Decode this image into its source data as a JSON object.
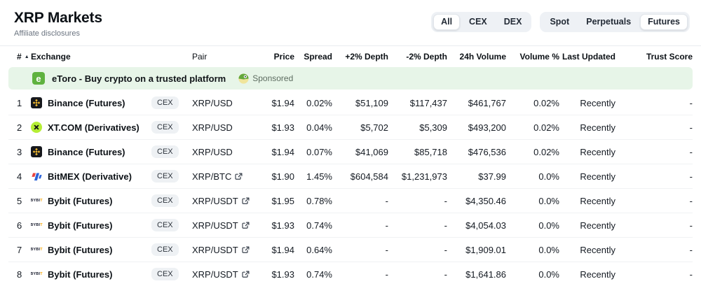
{
  "page": {
    "title": "XRP Markets",
    "subtitle": "Affiliate disclosures"
  },
  "icons": {
    "sort_ascending": "▲"
  },
  "filters": {
    "group1": {
      "options": [
        "All",
        "CEX",
        "DEX"
      ],
      "selected": "All"
    },
    "group2": {
      "options": [
        "Spot",
        "Perpetuals",
        "Futures"
      ],
      "selected": "Futures"
    }
  },
  "sponsored": {
    "logo": "etoro-logo",
    "logo_letter": "e",
    "text": "eToro - Buy crypto on a trusted platform",
    "badge_icon": "coingecko-gecko-icon",
    "badge_label": "Sponsored",
    "background_color": "#e7f5e8",
    "logo_color": "#5fb23f"
  },
  "table": {
    "headers": {
      "num": "#",
      "exchange": "Exchange",
      "pair": "Pair",
      "price": "Price",
      "spread": "Spread",
      "depth_plus": "+2% Depth",
      "depth_minus": "-2% Depth",
      "volume": "24h Volume",
      "volume_pct": "Volume %",
      "last_updated": "Last Updated",
      "trust_score": "Trust Score"
    },
    "rows": [
      {
        "num": "1",
        "logo": "binance-logo",
        "exchange": "Binance (Futures)",
        "type": "CEX",
        "pair": "XRP/USD",
        "pair_external_link": false,
        "price": "$1.94",
        "spread": "0.02%",
        "depth_plus": "$51,109",
        "depth_minus": "$117,437",
        "volume": "$461,767",
        "volume_pct": "0.02%",
        "last_updated": "Recently",
        "trust_score": "-"
      },
      {
        "num": "2",
        "logo": "xt-logo",
        "exchange": "XT.COM (Derivatives)",
        "type": "CEX",
        "pair": "XRP/USD",
        "pair_external_link": false,
        "price": "$1.93",
        "spread": "0.04%",
        "depth_plus": "$5,702",
        "depth_minus": "$5,309",
        "volume": "$493,200",
        "volume_pct": "0.02%",
        "last_updated": "Recently",
        "trust_score": "-"
      },
      {
        "num": "3",
        "logo": "binance-logo",
        "exchange": "Binance (Futures)",
        "type": "CEX",
        "pair": "XRP/USD",
        "pair_external_link": false,
        "price": "$1.94",
        "spread": "0.07%",
        "depth_plus": "$41,069",
        "depth_minus": "$85,718",
        "volume": "$476,536",
        "volume_pct": "0.02%",
        "last_updated": "Recently",
        "trust_score": "-"
      },
      {
        "num": "4",
        "logo": "bitmex-logo",
        "exchange": "BitMEX (Derivative)",
        "type": "CEX",
        "pair": "XRP/BTC",
        "pair_external_link": true,
        "price": "$1.90",
        "spread": "1.45%",
        "depth_plus": "$604,584",
        "depth_minus": "$1,231,973",
        "volume": "$37.99",
        "volume_pct": "0.0%",
        "last_updated": "Recently",
        "trust_score": "-"
      },
      {
        "num": "5",
        "logo": "bybit-logo",
        "exchange": "Bybit (Futures)",
        "type": "CEX",
        "pair": "XRP/USDT",
        "pair_external_link": true,
        "price": "$1.95",
        "spread": "0.78%",
        "depth_plus": "-",
        "depth_minus": "-",
        "volume": "$4,350.46",
        "volume_pct": "0.0%",
        "last_updated": "Recently",
        "trust_score": "-"
      },
      {
        "num": "6",
        "logo": "bybit-logo",
        "exchange": "Bybit (Futures)",
        "type": "CEX",
        "pair": "XRP/USDT",
        "pair_external_link": true,
        "price": "$1.93",
        "spread": "0.74%",
        "depth_plus": "-",
        "depth_minus": "-",
        "volume": "$4,054.03",
        "volume_pct": "0.0%",
        "last_updated": "Recently",
        "trust_score": "-"
      },
      {
        "num": "7",
        "logo": "bybit-logo",
        "exchange": "Bybit (Futures)",
        "type": "CEX",
        "pair": "XRP/USDT",
        "pair_external_link": true,
        "price": "$1.94",
        "spread": "0.64%",
        "depth_plus": "-",
        "depth_minus": "-",
        "volume": "$1,909.01",
        "volume_pct": "0.0%",
        "last_updated": "Recently",
        "trust_score": "-"
      },
      {
        "num": "8",
        "logo": "bybit-logo",
        "exchange": "Bybit (Futures)",
        "type": "CEX",
        "pair": "XRP/USDT",
        "pair_external_link": true,
        "price": "$1.93",
        "spread": "0.74%",
        "depth_plus": "-",
        "depth_minus": "-",
        "volume": "$1,641.86",
        "volume_pct": "0.0%",
        "last_updated": "Recently",
        "trust_score": "-"
      }
    ]
  },
  "colors": {
    "accent_green": "#5fb23f",
    "sponsored_bg": "#e7f5e8",
    "binance_yellow": "#f3ba2f",
    "xt_green": "#b5ee35",
    "bitmex_red": "#e8433f",
    "bitmex_blue": "#2b63d9",
    "bybit_yellow": "#f7a600",
    "badge_bg": "#eef1f4",
    "segment_bg": "#eef1f5"
  }
}
